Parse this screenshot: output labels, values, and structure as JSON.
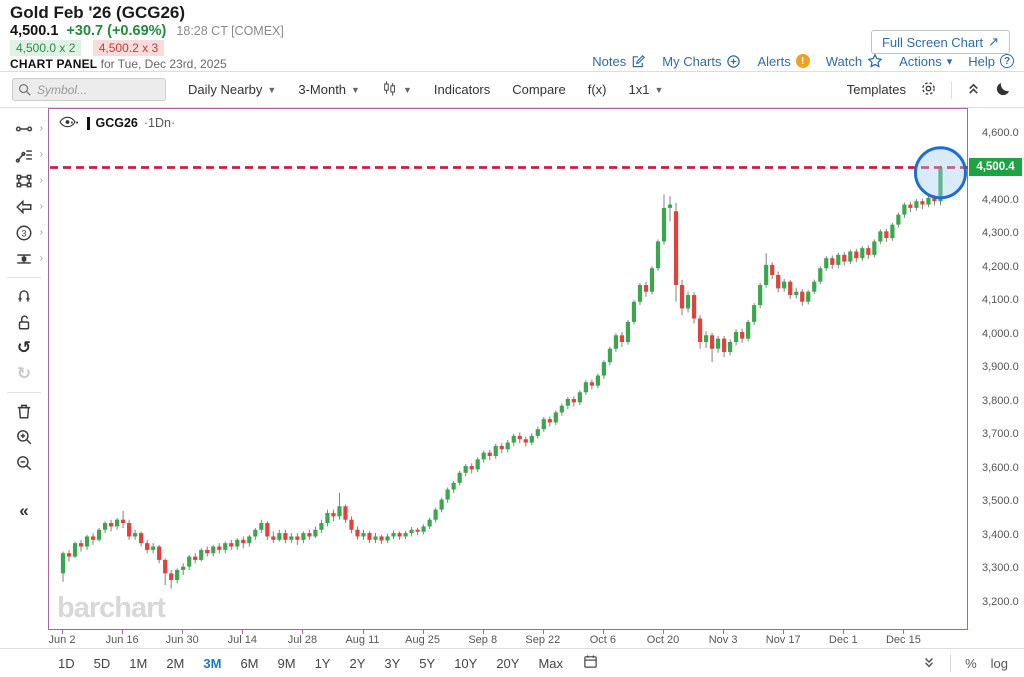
{
  "header": {
    "title": "Gold Feb '26 (GCG26)",
    "last_price": "4,500.1",
    "change": "+30.7 (+0.69%)",
    "quote_time": "18:28 CT [COMEX]",
    "bid": "4,500.0 x 2",
    "ask": "4,500.2 x 3",
    "panel_label": "CHART PANEL",
    "panel_date": " for Tue, Dec 23rd, 2025",
    "full_screen_button": "Full Screen Chart",
    "links": [
      {
        "label": "Notes",
        "icon": "notes-icon"
      },
      {
        "label": "My Charts",
        "icon": "circle-plus-icon"
      },
      {
        "label": "Alerts",
        "icon": "alert-icon",
        "badge": "!"
      },
      {
        "label": "Watch",
        "icon": "star-icon"
      },
      {
        "label": "Actions",
        "icon": "caret-down-icon"
      },
      {
        "label": "Help",
        "icon": "help-icon",
        "badge": "?"
      }
    ]
  },
  "toolbar": {
    "search_placeholder": "Symbol...",
    "frequency_label": "Daily Nearby",
    "range_label": "3-Month",
    "indicators_label": "Indicators",
    "compare_label": "Compare",
    "fx_label": "f(x)",
    "grid_label": "1x1",
    "templates_label": "Templates"
  },
  "sidebar": {
    "tools": [
      {
        "name": "trendline-tool",
        "submenu": true
      },
      {
        "name": "annotation-tool",
        "submenu": true
      },
      {
        "name": "shape-tool",
        "submenu": true
      },
      {
        "name": "callout-tool",
        "submenu": true
      },
      {
        "name": "elliott-wave-tool",
        "submenu": true
      },
      {
        "name": "measure-tool",
        "submenu": true
      },
      {
        "divider": true
      },
      {
        "name": "magnet-tool"
      },
      {
        "name": "unlock-tool"
      },
      {
        "name": "undo-button"
      },
      {
        "name": "redo-button",
        "disabled": true
      },
      {
        "divider": true
      },
      {
        "name": "delete-drawings-button"
      },
      {
        "name": "zoom-in-button"
      },
      {
        "name": "zoom-out-button"
      },
      {
        "name": "collapse-sidebar-button",
        "gap": true
      }
    ]
  },
  "legend": {
    "symbol": "GCG26",
    "frequency": "·1Dn·"
  },
  "watermark": "barchart",
  "bottom_bar": {
    "ranges": [
      "1D",
      "5D",
      "1M",
      "2M",
      "3M",
      "6M",
      "9M",
      "1Y",
      "2Y",
      "3Y",
      "5Y",
      "10Y",
      "20Y",
      "Max"
    ],
    "active_range": "3M",
    "right_items": [
      "%",
      "log"
    ]
  },
  "chart_data": {
    "type": "candlestick",
    "symbol": "GCG26",
    "frequency": "1 Day Nearest",
    "ylim": [
      3118,
      4675
    ],
    "y_ticks": [
      {
        "v": 4600,
        "label": "4,600.0"
      },
      {
        "v": 4500,
        "label": "4,500.0"
      },
      {
        "v": 4400,
        "label": "4,400.0"
      },
      {
        "v": 4300,
        "label": "4,300.0"
      },
      {
        "v": 4200,
        "label": "4,200.0"
      },
      {
        "v": 4100,
        "label": "4,100.0"
      },
      {
        "v": 4000,
        "label": "4,000.0"
      },
      {
        "v": 3900,
        "label": "3,900.0"
      },
      {
        "v": 3800,
        "label": "3,800.0"
      },
      {
        "v": 3700,
        "label": "3,700.0"
      },
      {
        "v": 3600,
        "label": "3,600.0"
      },
      {
        "v": 3500,
        "label": "3,500.0"
      },
      {
        "v": 3400,
        "label": "3,400.0"
      },
      {
        "v": 3300,
        "label": "3,300.0"
      },
      {
        "v": 3200,
        "label": "3,200.0"
      }
    ],
    "x_ticks": [
      {
        "label": "Jun 2",
        "bar": 0
      },
      {
        "label": "Jun 16",
        "bar": 10
      },
      {
        "label": "Jun 30",
        "bar": 20
      },
      {
        "label": "Jul 14",
        "bar": 30
      },
      {
        "label": "Jul 28",
        "bar": 40
      },
      {
        "label": "Aug 11",
        "bar": 50
      },
      {
        "label": "Aug 25",
        "bar": 60
      },
      {
        "label": "Sep 8",
        "bar": 70
      },
      {
        "label": "Sep 22",
        "bar": 80
      },
      {
        "label": "Oct 6",
        "bar": 90
      },
      {
        "label": "Oct 20",
        "bar": 100
      },
      {
        "label": "Nov 3",
        "bar": 110
      },
      {
        "label": "Nov 17",
        "bar": 120
      },
      {
        "label": "Dec 1",
        "bar": 130
      },
      {
        "label": "Dec 15",
        "bar": 140
      }
    ],
    "ohlc": [
      [
        3290,
        3355,
        3265,
        3350
      ],
      [
        3350,
        3360,
        3325,
        3340
      ],
      [
        3340,
        3385,
        3335,
        3380
      ],
      [
        3380,
        3390,
        3355,
        3370
      ],
      [
        3370,
        3405,
        3360,
        3400
      ],
      [
        3400,
        3410,
        3375,
        3390
      ],
      [
        3390,
        3425,
        3385,
        3420
      ],
      [
        3420,
        3445,
        3410,
        3440
      ],
      [
        3440,
        3450,
        3415,
        3430
      ],
      [
        3430,
        3455,
        3420,
        3450
      ],
      [
        3450,
        3476,
        3425,
        3440
      ],
      [
        3440,
        3450,
        3390,
        3400
      ],
      [
        3400,
        3420,
        3390,
        3410
      ],
      [
        3410,
        3415,
        3370,
        3380
      ],
      [
        3380,
        3390,
        3350,
        3360
      ],
      [
        3360,
        3380,
        3350,
        3370
      ],
      [
        3370,
        3375,
        3320,
        3330
      ],
      [
        3330,
        3335,
        3255,
        3290
      ],
      [
        3290,
        3300,
        3244,
        3270
      ],
      [
        3270,
        3305,
        3260,
        3300
      ],
      [
        3300,
        3320,
        3285,
        3310
      ],
      [
        3310,
        3345,
        3300,
        3340
      ],
      [
        3340,
        3350,
        3320,
        3330
      ],
      [
        3330,
        3365,
        3325,
        3360
      ],
      [
        3360,
        3370,
        3340,
        3350
      ],
      [
        3350,
        3375,
        3340,
        3370
      ],
      [
        3370,
        3380,
        3350,
        3360
      ],
      [
        3360,
        3385,
        3350,
        3380
      ],
      [
        3380,
        3390,
        3360,
        3370
      ],
      [
        3370,
        3395,
        3360,
        3390
      ],
      [
        3390,
        3400,
        3365,
        3380
      ],
      [
        3380,
        3405,
        3370,
        3400
      ],
      [
        3400,
        3425,
        3390,
        3420
      ],
      [
        3420,
        3450,
        3410,
        3440
      ],
      [
        3440,
        3445,
        3390,
        3400
      ],
      [
        3400,
        3415,
        3380,
        3390
      ],
      [
        3390,
        3420,
        3385,
        3410
      ],
      [
        3410,
        3420,
        3380,
        3390
      ],
      [
        3390,
        3410,
        3380,
        3400
      ],
      [
        3400,
        3410,
        3375,
        3390
      ],
      [
        3390,
        3415,
        3380,
        3410
      ],
      [
        3410,
        3420,
        3390,
        3400
      ],
      [
        3400,
        3430,
        3395,
        3420
      ],
      [
        3420,
        3450,
        3410,
        3440
      ],
      [
        3440,
        3480,
        3430,
        3470
      ],
      [
        3470,
        3480,
        3445,
        3460
      ],
      [
        3460,
        3530,
        3450,
        3490
      ],
      [
        3490,
        3495,
        3440,
        3450
      ],
      [
        3450,
        3460,
        3410,
        3420
      ],
      [
        3420,
        3430,
        3390,
        3400
      ],
      [
        3400,
        3420,
        3390,
        3410
      ],
      [
        3410,
        3415,
        3380,
        3390
      ],
      [
        3390,
        3410,
        3380,
        3400
      ],
      [
        3400,
        3405,
        3378,
        3388
      ],
      [
        3388,
        3408,
        3380,
        3400
      ],
      [
        3400,
        3418,
        3392,
        3410
      ],
      [
        3410,
        3415,
        3390,
        3400
      ],
      [
        3400,
        3416,
        3392,
        3410
      ],
      [
        3410,
        3428,
        3400,
        3420
      ],
      [
        3420,
        3426,
        3404,
        3414
      ],
      [
        3414,
        3436,
        3406,
        3430
      ],
      [
        3430,
        3456,
        3422,
        3450
      ],
      [
        3450,
        3486,
        3442,
        3480
      ],
      [
        3480,
        3516,
        3472,
        3510
      ],
      [
        3510,
        3546,
        3500,
        3540
      ],
      [
        3540,
        3566,
        3530,
        3560
      ],
      [
        3560,
        3596,
        3552,
        3590
      ],
      [
        3590,
        3616,
        3580,
        3610
      ],
      [
        3610,
        3618,
        3588,
        3600
      ],
      [
        3600,
        3636,
        3592,
        3630
      ],
      [
        3630,
        3656,
        3620,
        3650
      ],
      [
        3650,
        3658,
        3628,
        3640
      ],
      [
        3640,
        3676,
        3632,
        3670
      ],
      [
        3670,
        3678,
        3648,
        3660
      ],
      [
        3660,
        3688,
        3650,
        3680
      ],
      [
        3680,
        3706,
        3670,
        3700
      ],
      [
        3700,
        3710,
        3678,
        3690
      ],
      [
        3690,
        3698,
        3668,
        3680
      ],
      [
        3680,
        3708,
        3672,
        3700
      ],
      [
        3700,
        3728,
        3692,
        3720
      ],
      [
        3720,
        3756,
        3712,
        3750
      ],
      [
        3750,
        3758,
        3728,
        3740
      ],
      [
        3740,
        3776,
        3732,
        3770
      ],
      [
        3770,
        3796,
        3760,
        3790
      ],
      [
        3790,
        3816,
        3780,
        3810
      ],
      [
        3810,
        3818,
        3788,
        3800
      ],
      [
        3800,
        3836,
        3792,
        3830
      ],
      [
        3830,
        3866,
        3822,
        3860
      ],
      [
        3860,
        3868,
        3838,
        3850
      ],
      [
        3850,
        3886,
        3842,
        3880
      ],
      [
        3880,
        3926,
        3870,
        3920
      ],
      [
        3920,
        3966,
        3910,
        3960
      ],
      [
        3960,
        4006,
        3950,
        4000
      ],
      [
        4000,
        4010,
        3965,
        3980
      ],
      [
        3980,
        4046,
        3972,
        4040
      ],
      [
        4040,
        4106,
        4032,
        4100
      ],
      [
        4100,
        4156,
        4090,
        4150
      ],
      [
        4150,
        4160,
        4115,
        4130
      ],
      [
        4130,
        4206,
        4122,
        4200
      ],
      [
        4200,
        4286,
        4192,
        4280
      ],
      [
        4280,
        4420,
        4270,
        4380
      ],
      [
        4380,
        4415,
        4340,
        4390
      ],
      [
        4370,
        4395,
        4100,
        4150
      ],
      [
        4150,
        4165,
        4060,
        4080
      ],
      [
        4080,
        4130,
        4068,
        4120
      ],
      [
        4120,
        4128,
        4035,
        4050
      ],
      [
        4050,
        4060,
        3960,
        3980
      ],
      [
        3980,
        4012,
        3962,
        4000
      ],
      [
        4000,
        4008,
        3920,
        3960
      ],
      [
        3960,
        3998,
        3948,
        3990
      ],
      [
        3990,
        3998,
        3935,
        3950
      ],
      [
        3950,
        3988,
        3940,
        3980
      ],
      [
        3980,
        4018,
        3970,
        4010
      ],
      [
        4010,
        4020,
        3978,
        3990
      ],
      [
        3990,
        4046,
        3982,
        4040
      ],
      [
        4040,
        4096,
        4030,
        4090
      ],
      [
        4090,
        4156,
        4080,
        4150
      ],
      [
        4150,
        4245,
        4142,
        4210
      ],
      [
        4210,
        4218,
        4168,
        4180
      ],
      [
        4180,
        4190,
        4128,
        4140
      ],
      [
        4140,
        4168,
        4130,
        4160
      ],
      [
        4160,
        4165,
        4108,
        4120
      ],
      [
        4120,
        4142,
        4110,
        4130
      ],
      [
        4130,
        4138,
        4088,
        4100
      ],
      [
        4100,
        4136,
        4092,
        4130
      ],
      [
        4130,
        4166,
        4122,
        4160
      ],
      [
        4160,
        4206,
        4152,
        4200
      ],
      [
        4200,
        4236,
        4192,
        4230
      ],
      [
        4230,
        4238,
        4198,
        4210
      ],
      [
        4210,
        4246,
        4200,
        4240
      ],
      [
        4240,
        4248,
        4208,
        4220
      ],
      [
        4220,
        4256,
        4212,
        4250
      ],
      [
        4250,
        4258,
        4218,
        4230
      ],
      [
        4230,
        4266,
        4222,
        4260
      ],
      [
        4260,
        4268,
        4228,
        4240
      ],
      [
        4240,
        4286,
        4232,
        4280
      ],
      [
        4280,
        4316,
        4272,
        4310
      ],
      [
        4310,
        4318,
        4278,
        4290
      ],
      [
        4290,
        4336,
        4282,
        4330
      ],
      [
        4330,
        4366,
        4322,
        4360
      ],
      [
        4360,
        4396,
        4350,
        4390
      ],
      [
        4390,
        4398,
        4368,
        4380
      ],
      [
        4380,
        4406,
        4372,
        4400
      ],
      [
        4400,
        4408,
        4376,
        4390
      ],
      [
        4390,
        4416,
        4382,
        4410
      ],
      [
        4410,
        4418,
        4388,
        4400
      ],
      [
        4400,
        4506,
        4388,
        4500
      ]
    ],
    "annotations": {
      "hline": {
        "price": 4500.4,
        "label": "4,500.4",
        "style": "dashed",
        "color": "#cb1f3b"
      },
      "circle": {
        "bar_index": 146,
        "price": 4485,
        "radius": 25,
        "color": "#1d6ed4"
      }
    },
    "colors": {
      "up": "#3aa74e",
      "down": "#e2413c",
      "wick": "#808080",
      "axis_text": "#555555",
      "plot_border": "#a566a5",
      "price_tag_bg": "#1fa342"
    }
  }
}
